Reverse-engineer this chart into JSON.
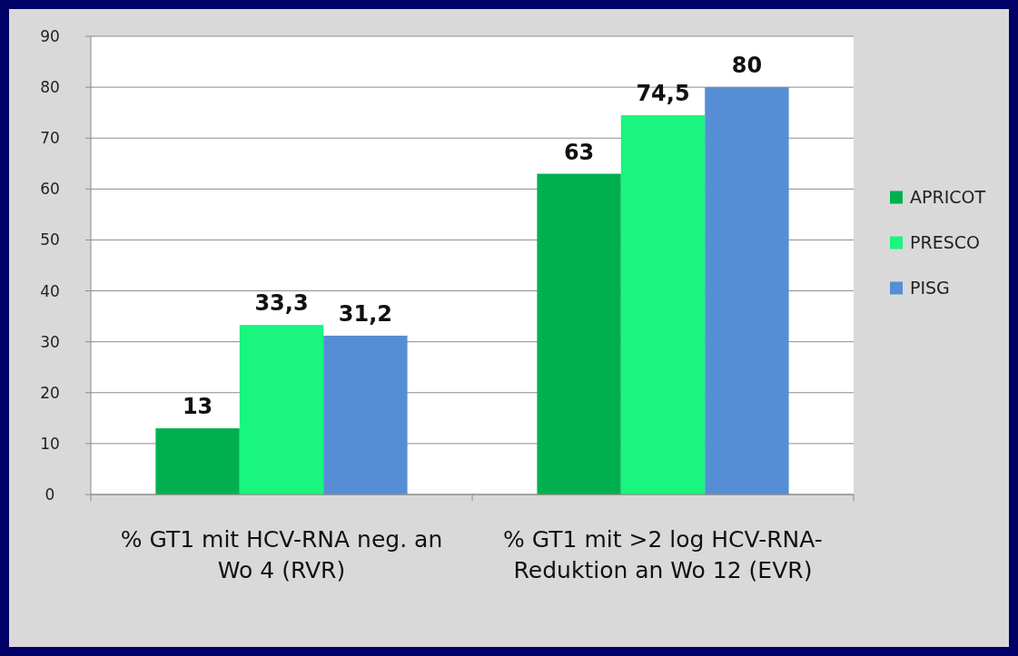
{
  "chart_data": {
    "type": "bar",
    "categories": [
      "% GT1 mit HCV-RNA neg. an Wo 4 (RVR)",
      "% GT1 mit >2 log HCV-RNA-Reduktion an Wo 12 (EVR)"
    ],
    "series": [
      {
        "name": "APRICOT",
        "color": "#00b050",
        "values": [
          13,
          63
        ],
        "value_labels": [
          "13",
          "63"
        ]
      },
      {
        "name": "PRESCO",
        "color": "#19f57f",
        "values": [
          33.3,
          74.5
        ],
        "value_labels": [
          "33,3",
          "74,5"
        ]
      },
      {
        "name": "PISG",
        "color": "#558ed5",
        "values": [
          31.2,
          80
        ],
        "value_labels": [
          "31,2",
          "80"
        ]
      }
    ],
    "ylim": [
      0,
      90
    ],
    "yticks": [
      0,
      10,
      20,
      30,
      40,
      50,
      60,
      70,
      80,
      90
    ],
    "grid": "y",
    "legend": "right"
  }
}
